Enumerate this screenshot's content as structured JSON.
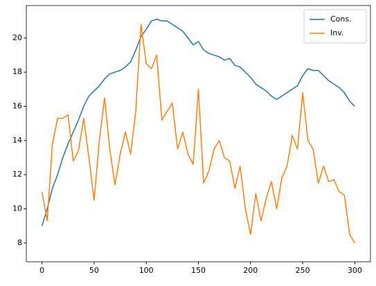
{
  "chart_data": {
    "type": "line",
    "x": [
      0,
      5,
      10,
      15,
      20,
      25,
      30,
      35,
      40,
      45,
      50,
      55,
      60,
      65,
      70,
      75,
      80,
      85,
      90,
      95,
      100,
      105,
      110,
      115,
      120,
      125,
      130,
      135,
      140,
      145,
      150,
      155,
      160,
      165,
      170,
      175,
      180,
      185,
      190,
      195,
      200,
      205,
      210,
      215,
      220,
      225,
      230,
      235,
      240,
      245,
      250,
      255,
      260,
      265,
      270,
      275,
      280,
      285,
      290,
      295,
      300
    ],
    "series": [
      {
        "name": "Cons.",
        "color": "#1f77b4",
        "values": [
          9.0,
          10.0,
          11.2,
          12.0,
          13.0,
          13.8,
          14.5,
          15.2,
          16.0,
          16.6,
          16.9,
          17.2,
          17.6,
          17.9,
          18.0,
          18.1,
          18.3,
          18.6,
          19.3,
          20.1,
          20.5,
          21.0,
          21.1,
          21.0,
          21.0,
          20.8,
          20.6,
          20.4,
          20.0,
          19.6,
          19.8,
          19.3,
          19.1,
          19.0,
          18.9,
          18.7,
          18.8,
          18.4,
          18.3,
          18.0,
          17.7,
          17.3,
          17.1,
          16.9,
          16.6,
          16.4,
          16.6,
          16.8,
          17.0,
          17.2,
          17.8,
          18.2,
          18.1,
          18.1,
          17.8,
          17.5,
          17.3,
          17.1,
          16.8,
          16.3,
          16.0
        ]
      },
      {
        "name": "Inv.",
        "color": "#ff7f0e",
        "values": [
          11.0,
          9.3,
          13.8,
          15.3,
          15.3,
          15.5,
          12.8,
          13.4,
          15.3,
          13.0,
          10.5,
          14.0,
          16.5,
          13.5,
          11.4,
          13.2,
          14.5,
          13.2,
          15.8,
          20.8,
          18.5,
          18.2,
          19.0,
          15.2,
          15.7,
          16.2,
          13.5,
          14.5,
          13.2,
          12.6,
          17.0,
          11.5,
          12.2,
          13.5,
          14.0,
          13.0,
          12.8,
          11.2,
          12.5,
          10.0,
          8.5,
          10.9,
          9.3,
          10.6,
          11.6,
          10.0,
          11.8,
          12.5,
          14.3,
          13.5,
          16.8,
          14.0,
          13.5,
          11.5,
          12.5,
          11.6,
          11.7,
          11.0,
          10.8,
          8.5,
          8.0
        ]
      }
    ],
    "xlim": [
      -15,
      315
    ],
    "ylim": [
      6.9,
      21.9
    ],
    "xticks": [
      0,
      50,
      100,
      150,
      200,
      250,
      300
    ],
    "yticks": [
      8,
      10,
      12,
      14,
      16,
      18,
      20
    ],
    "legend": "upper right"
  }
}
